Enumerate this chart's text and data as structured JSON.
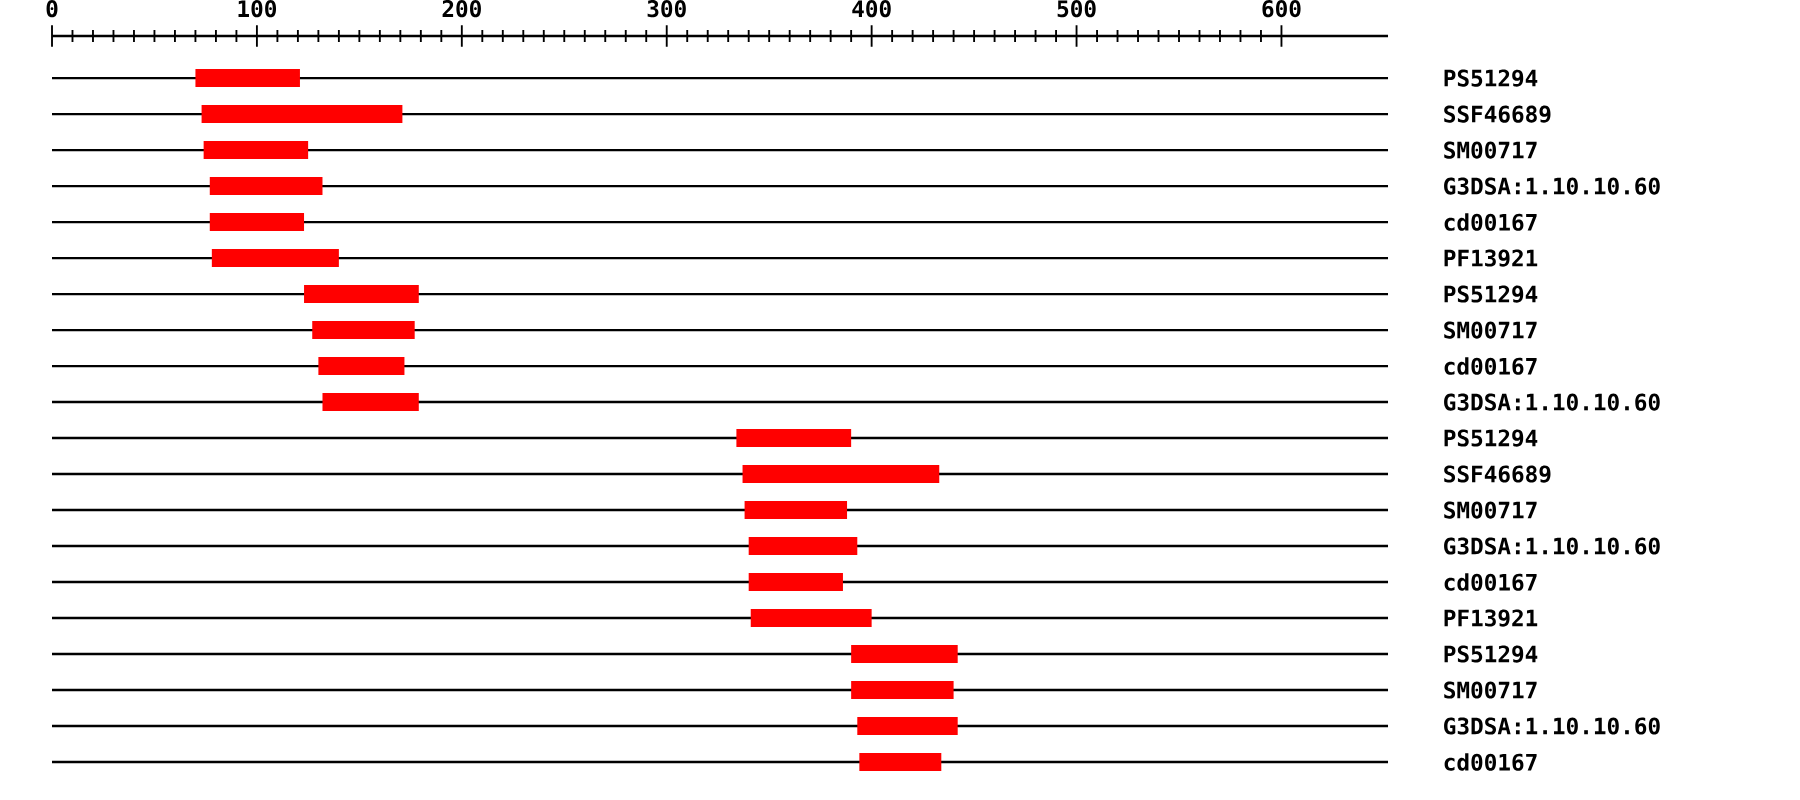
{
  "chart_data": {
    "type": "bar",
    "orientation": "horizontal",
    "categories": [
      "PS51294",
      "SSF46689",
      "SM00717",
      "G3DSA:1.10.10.60",
      "cd00167",
      "PF13921",
      "PS51294",
      "SM00717",
      "cd00167",
      "G3DSA:1.10.10.60",
      "PS51294",
      "SSF46689",
      "SM00717",
      "G3DSA:1.10.10.60",
      "cd00167",
      "PF13921",
      "PS51294",
      "SM00717",
      "G3DSA:1.10.10.60",
      "cd00167"
    ],
    "base": [
      70,
      73,
      74,
      77,
      77,
      78,
      123,
      127,
      130,
      132,
      334,
      337,
      338,
      340,
      340,
      341,
      390,
      390,
      393,
      394
    ],
    "values": [
      51,
      98,
      51,
      55,
      46,
      62,
      56,
      50,
      42,
      47,
      56,
      96,
      50,
      53,
      46,
      59,
      52,
      50,
      49,
      40
    ],
    "color": "#ff0000",
    "xlim": [
      0,
      652
    ],
    "xticks": [
      0,
      100,
      200,
      300,
      400,
      500,
      600
    ],
    "grid": "y"
  }
}
